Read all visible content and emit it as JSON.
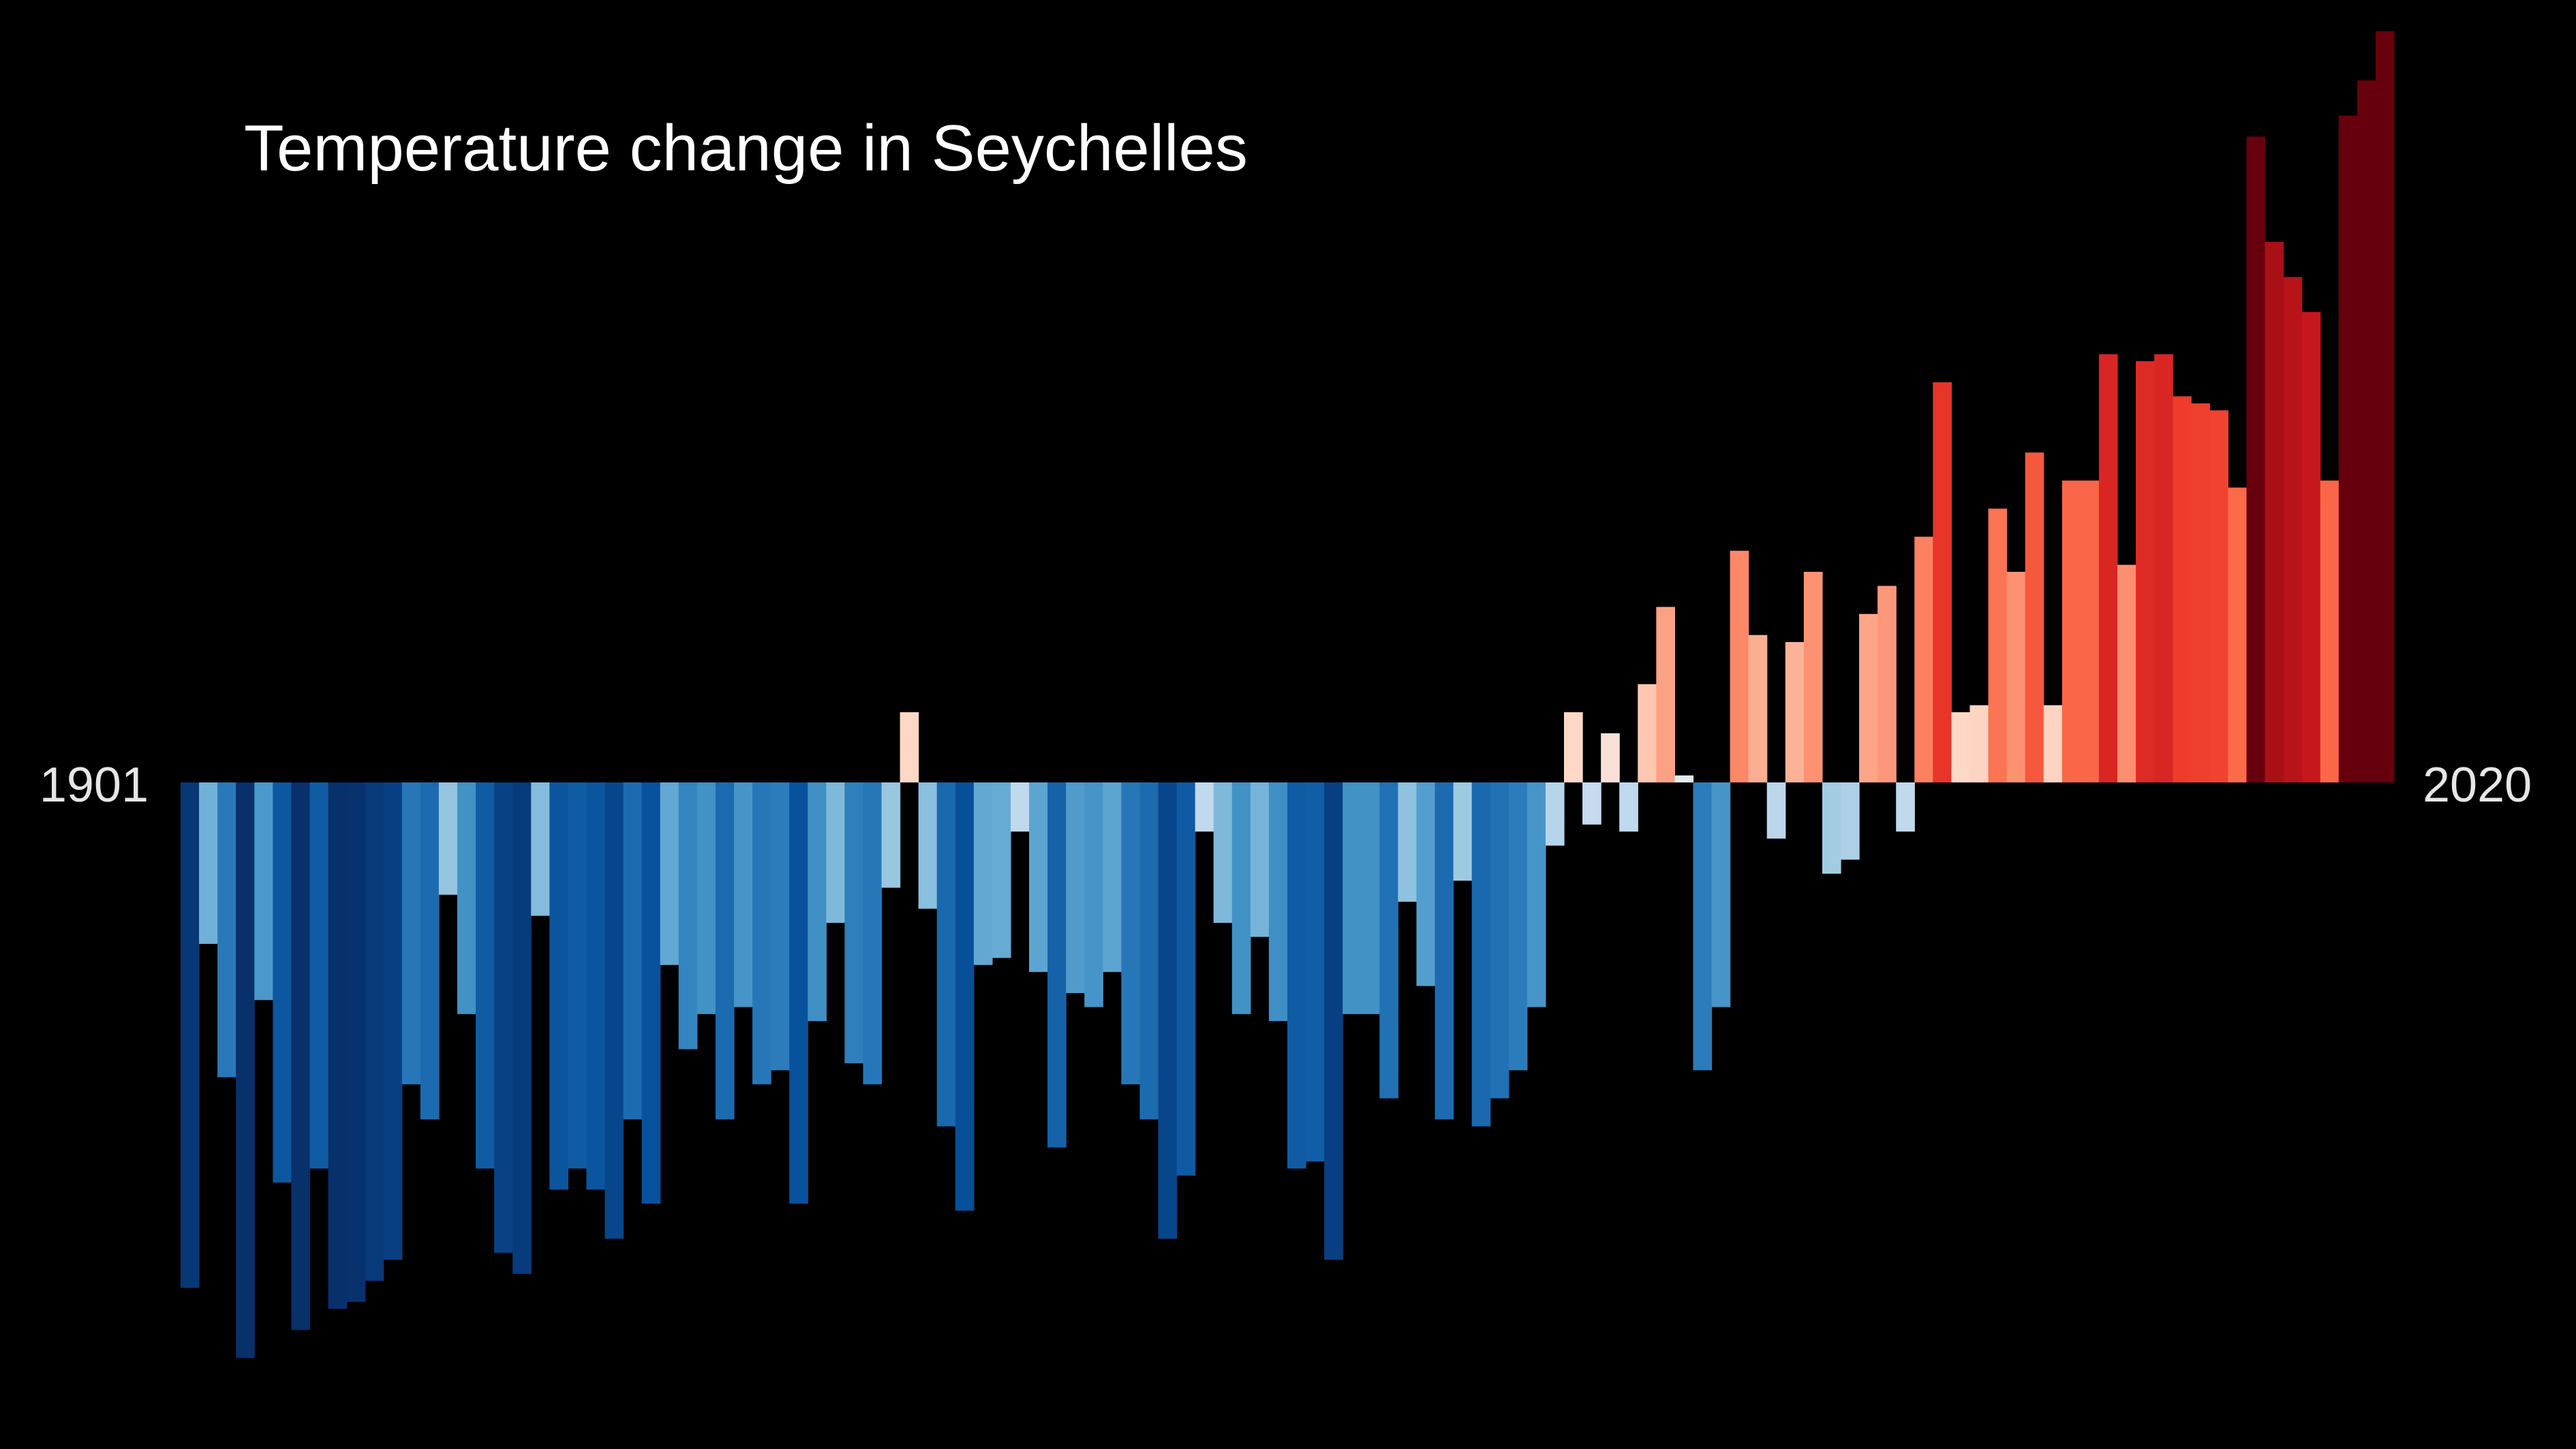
{
  "chart_data": {
    "type": "bar",
    "title": "Temperature change in Seychelles",
    "x_start_label": "1901",
    "x_end_label": "2020",
    "x": [
      1901,
      1902,
      1903,
      1904,
      1905,
      1906,
      1907,
      1908,
      1909,
      1910,
      1911,
      1912,
      1913,
      1914,
      1915,
      1916,
      1917,
      1918,
      1919,
      1920,
      1921,
      1922,
      1923,
      1924,
      1925,
      1926,
      1927,
      1928,
      1929,
      1930,
      1931,
      1932,
      1933,
      1934,
      1935,
      1936,
      1937,
      1938,
      1939,
      1940,
      1941,
      1942,
      1943,
      1944,
      1945,
      1946,
      1947,
      1948,
      1949,
      1950,
      1951,
      1952,
      1953,
      1954,
      1955,
      1956,
      1957,
      1958,
      1959,
      1960,
      1961,
      1962,
      1963,
      1964,
      1965,
      1966,
      1967,
      1968,
      1969,
      1970,
      1971,
      1972,
      1973,
      1974,
      1975,
      1976,
      1977,
      1978,
      1979,
      1980,
      1981,
      1982,
      1983,
      1984,
      1985,
      1986,
      1987,
      1988,
      1989,
      1990,
      1991,
      1992,
      1993,
      1994,
      1995,
      1996,
      1997,
      1998,
      1999,
      2000,
      2001,
      2002,
      2003,
      2004,
      2005,
      2006,
      2007,
      2008,
      2009,
      2010,
      2011,
      2012,
      2013,
      2014,
      2015,
      2016,
      2017,
      2018,
      2019,
      2020
    ],
    "values": [
      -0.72,
      -0.23,
      -0.42,
      -0.82,
      -0.31,
      -0.57,
      -0.78,
      -0.55,
      -0.75,
      -0.74,
      -0.71,
      -0.68,
      -0.43,
      -0.48,
      -0.16,
      -0.33,
      -0.55,
      -0.67,
      -0.7,
      -0.19,
      -0.58,
      -0.55,
      -0.58,
      -0.65,
      -0.48,
      -0.6,
      -0.26,
      -0.38,
      -0.33,
      -0.48,
      -0.32,
      -0.43,
      -0.41,
      -0.6,
      -0.34,
      -0.2,
      -0.4,
      -0.43,
      -0.15,
      0.1,
      -0.18,
      -0.49,
      -0.61,
      -0.26,
      -0.25,
      -0.07,
      -0.27,
      -0.52,
      -0.3,
      -0.32,
      -0.27,
      -0.43,
      -0.48,
      -0.65,
      -0.56,
      -0.07,
      -0.2,
      -0.33,
      -0.22,
      -0.34,
      -0.55,
      -0.54,
      -0.68,
      -0.33,
      -0.33,
      -0.45,
      -0.17,
      -0.29,
      -0.48,
      -0.14,
      -0.49,
      -0.45,
      -0.41,
      -0.32,
      -0.09,
      0.1,
      -0.06,
      0.07,
      -0.07,
      0.14,
      0.25,
      0.01,
      -0.41,
      -0.32,
      0.33,
      0.21,
      -0.08,
      0.2,
      0.3,
      -0.13,
      -0.11,
      0.24,
      0.28,
      -0.07,
      0.35,
      0.57,
      0.1,
      0.11,
      0.39,
      0.3,
      0.47,
      0.11,
      0.43,
      0.43,
      0.61,
      0.31,
      0.6,
      0.61,
      0.55,
      0.54,
      0.53,
      0.42,
      0.92,
      0.77,
      0.72,
      0.67,
      0.43,
      0.95,
      1.0,
      1.07
    ],
    "ylim": [
      -0.95,
      1.25
    ],
    "grid": false,
    "legend": "none"
  }
}
